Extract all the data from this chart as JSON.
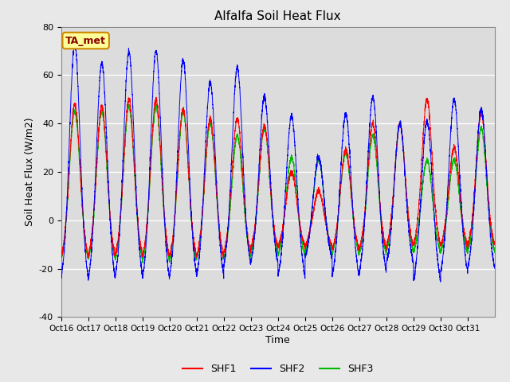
{
  "title": "Alfalfa Soil Heat Flux",
  "ylabel": "Soil Heat Flux (W/m2)",
  "xlabel": "Time",
  "ylim": [
    -40,
    80
  ],
  "yticks": [
    -40,
    -20,
    0,
    20,
    40,
    60,
    80
  ],
  "colors": {
    "SHF1": "#FF0000",
    "SHF2": "#0000FF",
    "SHF3": "#00BB00"
  },
  "fig_facecolor": "#E8E8E8",
  "plot_bg_color": "#DCDCDC",
  "annotation_text": "TA_met",
  "annotation_color": "#8B0000",
  "annotation_bg": "#FFFF99",
  "annotation_edge": "#CC8800",
  "n_days": 16,
  "points_per_day": 288,
  "day_peaks_shf2": [
    73,
    65,
    70,
    70,
    66,
    57,
    63,
    51,
    43,
    26,
    44,
    51,
    40,
    41,
    50,
    46
  ],
  "day_peaks_shf1": [
    48,
    47,
    50,
    50,
    46,
    42,
    42,
    39,
    20,
    12,
    29,
    40,
    40,
    50,
    30,
    44
  ],
  "day_peaks_shf3": [
    45,
    45,
    47,
    47,
    45,
    40,
    35,
    38,
    26,
    25,
    28,
    35,
    40,
    25,
    25,
    38
  ],
  "night_min_shf1": [
    -20,
    -20,
    -19,
    -20,
    -20,
    -20,
    -18,
    -15,
    -14,
    -14,
    -16,
    -16,
    -14,
    -14,
    -14,
    -14
  ],
  "night_min_shf2": [
    -31,
    -32,
    -30,
    -32,
    -30,
    -30,
    -25,
    -23,
    -30,
    -20,
    -30,
    -28,
    -23,
    -32,
    -28,
    -26
  ],
  "night_min_shf3": [
    -21,
    -21,
    -21,
    -22,
    -22,
    -21,
    -20,
    -18,
    -19,
    -18,
    -18,
    -18,
    -17,
    -17,
    -17,
    -17
  ],
  "xtick_labels": [
    "Oct 16",
    "Oct 17",
    "Oct 18",
    "Oct 19",
    "Oct 20",
    "Oct 21",
    "Oct 22",
    "Oct 23",
    "Oct 24",
    "Oct 25",
    "Oct 26",
    "Oct 27",
    "Oct 28",
    "Oct 29",
    "Oct 30",
    "Oct 31"
  ]
}
